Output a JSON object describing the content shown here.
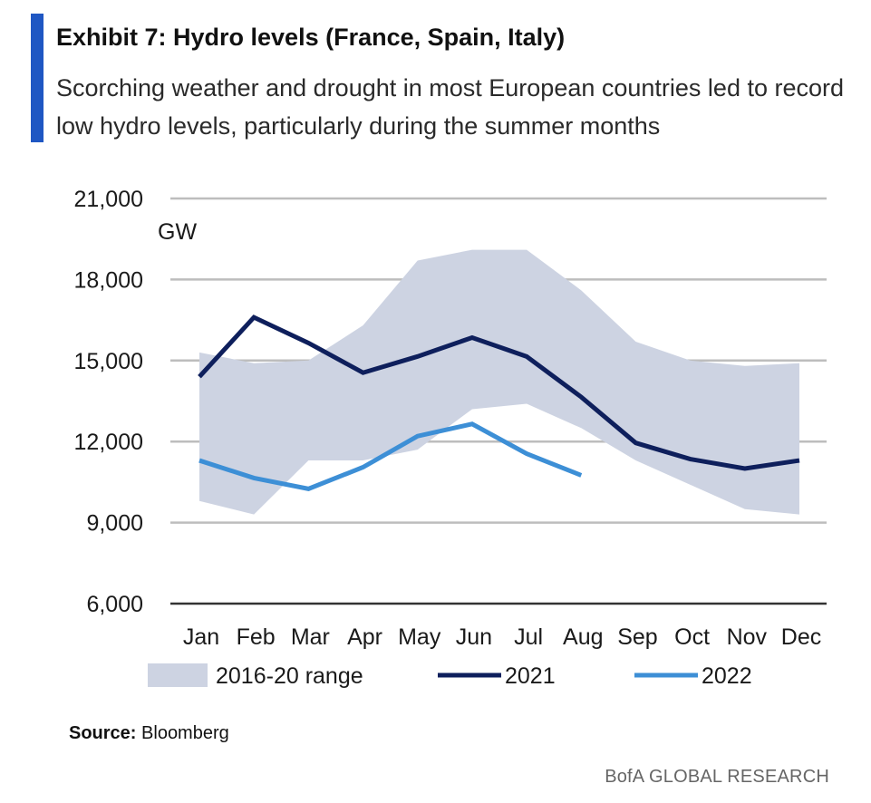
{
  "header": {
    "title": "Exhibit 7: Hydro levels (France, Spain, Italy)",
    "subtitle": "Scorching weather and drought in most European countries led to record low hydro levels, particularly during the summer months"
  },
  "footer": {
    "source_label": "Source:",
    "source_value": "Bloomberg",
    "brand": "BofA GLOBAL RESEARCH"
  },
  "colors": {
    "accent": "#1f57c3",
    "range_fill": "#cdd3e2",
    "series_2021": "#0e1f5c",
    "series_2022": "#3d8fd6",
    "grid": "#bdbdbd",
    "axis": "#333333"
  },
  "chart_data": {
    "type": "line",
    "unit_label": "GW",
    "categories": [
      "Jan",
      "Feb",
      "Mar",
      "Apr",
      "May",
      "Jun",
      "Jul",
      "Aug",
      "Sep",
      "Oct",
      "Nov",
      "Dec"
    ],
    "ylim": [
      6000,
      21000
    ],
    "yticks": [
      6000,
      9000,
      12000,
      15000,
      18000,
      21000
    ],
    "ytick_labels": [
      "6,000",
      "9,000",
      "12,000",
      "15,000",
      "18,000",
      "21,000"
    ],
    "grid": true,
    "legend_position": "bottom",
    "range": {
      "name": "2016-20 range",
      "upper": [
        15300,
        14900,
        15000,
        16300,
        18700,
        19100,
        19100,
        17600,
        15700,
        15000,
        14800,
        14900
      ],
      "lower": [
        9800,
        9300,
        11300,
        11300,
        11700,
        13200,
        13400,
        12500,
        11300,
        10400,
        9500,
        9300
      ]
    },
    "series": [
      {
        "name": "2021",
        "values": [
          14400,
          16600,
          15650,
          14550,
          15150,
          15850,
          15150,
          13650,
          11950,
          11350,
          11000,
          11300
        ]
      },
      {
        "name": "2022",
        "values": [
          11300,
          10650,
          10250,
          11050,
          12200,
          12650,
          11550,
          10750,
          null,
          null,
          null,
          null
        ]
      }
    ]
  }
}
